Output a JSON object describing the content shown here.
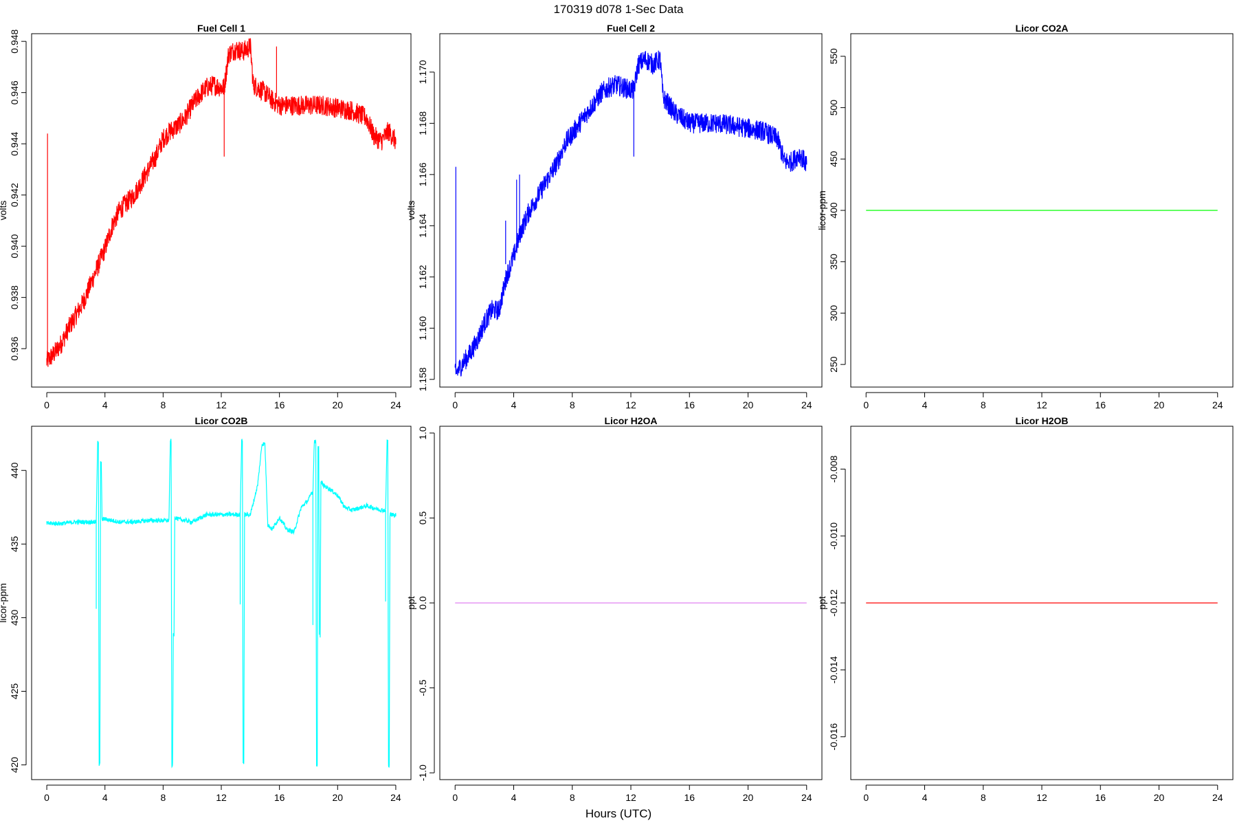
{
  "page": {
    "title": "170319   d078   1-Sec Data",
    "x_axis_label": "Hours (UTC)"
  },
  "chart_data": [
    {
      "type": "line",
      "title": "Fuel Cell 1",
      "ylabel": "volts",
      "xlim": [
        0,
        24
      ],
      "ylim": [
        0.9345,
        0.9483
      ],
      "x_ticks": [
        0,
        4,
        8,
        12,
        16,
        20,
        24
      ],
      "x_tick_labels": [
        "0",
        "4",
        "8",
        "12",
        "16",
        "20",
        "24"
      ],
      "y_ticks": [
        0.936,
        0.938,
        0.94,
        0.942,
        0.944,
        0.946,
        0.948
      ],
      "y_tick_labels": [
        "0.936",
        "0.938",
        "0.940",
        "0.942",
        "0.944",
        "0.946",
        "0.948"
      ],
      "color": "#ff0000",
      "noise": 0.0004,
      "series": [
        {
          "x": [
            0,
            0.5,
            1,
            1.5,
            2,
            2.5,
            3,
            3.5,
            4,
            4.5,
            5,
            5.5,
            6,
            6.5,
            7,
            7.5,
            8,
            8.5,
            9,
            9.5,
            10,
            10.5,
            11,
            11.5,
            12,
            12.2,
            12.5,
            13,
            13.5,
            14,
            14.2,
            14.5,
            15,
            15.5,
            16,
            17,
            18,
            19,
            20,
            21,
            22,
            22.5,
            23,
            23.5,
            24
          ],
          "y": [
            0.9355,
            0.9358,
            0.9362,
            0.9368,
            0.9373,
            0.9378,
            0.9385,
            0.9392,
            0.9399,
            0.9408,
            0.9414,
            0.9417,
            0.942,
            0.9425,
            0.943,
            0.9435,
            0.9442,
            0.9445,
            0.9447,
            0.945,
            0.9455,
            0.9459,
            0.9462,
            0.9463,
            0.9462,
            0.9462,
            0.9475,
            0.9477,
            0.9476,
            0.9478,
            0.9463,
            0.9462,
            0.946,
            0.9457,
            0.9455,
            0.9455,
            0.9455,
            0.9455,
            0.9454,
            0.9453,
            0.945,
            0.9443,
            0.9441,
            0.9445,
            0.9441
          ]
        }
      ],
      "spikes": [
        {
          "x": 0.05,
          "y0": 0.9355,
          "y1": 0.9444
        },
        {
          "x": 12.2,
          "y0": 0.9462,
          "y1": 0.9435
        },
        {
          "x": 15.8,
          "y0": 0.9458,
          "y1": 0.9478
        }
      ]
    },
    {
      "type": "line",
      "title": "Fuel Cell 2",
      "ylabel": "volts",
      "xlim": [
        0,
        24
      ],
      "ylim": [
        1.1577,
        1.1715
      ],
      "x_ticks": [
        0,
        4,
        8,
        12,
        16,
        20,
        24
      ],
      "x_tick_labels": [
        "0",
        "4",
        "8",
        "12",
        "16",
        "20",
        "24"
      ],
      "y_ticks": [
        1.158,
        1.16,
        1.162,
        1.164,
        1.166,
        1.168,
        1.17
      ],
      "y_tick_labels": [
        "1.158",
        "1.160",
        "1.162",
        "1.164",
        "1.166",
        "1.168",
        "1.170"
      ],
      "color": "#0000ff",
      "noise": 0.0004,
      "series": [
        {
          "x": [
            0,
            0.5,
            1,
            1.5,
            2,
            2.5,
            3,
            3.5,
            4,
            4.5,
            5,
            5.5,
            6,
            6.5,
            7,
            7.5,
            8,
            8.5,
            9,
            9.5,
            10,
            10.5,
            11,
            11.5,
            12,
            12.2,
            12.5,
            13,
            13.5,
            14,
            14.2,
            14.5,
            15,
            15.5,
            16,
            17,
            18,
            19,
            20,
            21,
            22,
            22.5,
            23,
            23.5,
            24
          ],
          "y": [
            1.1582,
            1.1586,
            1.159,
            1.1595,
            1.1602,
            1.1607,
            1.1607,
            1.162,
            1.1628,
            1.1638,
            1.1645,
            1.165,
            1.1655,
            1.166,
            1.1665,
            1.1672,
            1.1676,
            1.168,
            1.1684,
            1.1688,
            1.1692,
            1.1694,
            1.1695,
            1.1694,
            1.1693,
            1.1693,
            1.1703,
            1.1705,
            1.1703,
            1.1705,
            1.169,
            1.1688,
            1.1684,
            1.1682,
            1.168,
            1.168,
            1.168,
            1.1679,
            1.1678,
            1.1677,
            1.1674,
            1.1665,
            1.1665,
            1.1668,
            1.1664
          ]
        }
      ],
      "spikes": [
        {
          "x": 0.05,
          "y0": 1.1582,
          "y1": 1.1663
        },
        {
          "x": 3.45,
          "y0": 1.1625,
          "y1": 1.1642
        },
        {
          "x": 4.2,
          "y0": 1.1632,
          "y1": 1.1658
        },
        {
          "x": 4.4,
          "y0": 1.1635,
          "y1": 1.166
        },
        {
          "x": 12.2,
          "y0": 1.1693,
          "y1": 1.1667
        }
      ]
    },
    {
      "type": "line",
      "title": "Licor CO2A",
      "ylabel": "licor-ppm",
      "xlim": [
        0,
        24
      ],
      "ylim": [
        228,
        572
      ],
      "x_ticks": [
        0,
        4,
        8,
        12,
        16,
        20,
        24
      ],
      "x_tick_labels": [
        "0",
        "4",
        "8",
        "12",
        "16",
        "20",
        "24"
      ],
      "y_ticks": [
        250,
        300,
        350,
        400,
        450,
        500,
        550
      ],
      "y_tick_labels": [
        "250",
        "300",
        "350",
        "400",
        "450",
        "500",
        "550"
      ],
      "color": "#00ff00",
      "noise": 0,
      "series": [
        {
          "x": [
            0,
            24
          ],
          "y": [
            400,
            400
          ]
        }
      ],
      "spikes": []
    },
    {
      "type": "line",
      "title": "Licor CO2B",
      "ylabel": "licor-ppm",
      "xlim": [
        0,
        24
      ],
      "ylim": [
        419,
        443
      ],
      "x_ticks": [
        0,
        4,
        8,
        12,
        16,
        20,
        24
      ],
      "x_tick_labels": [
        "0",
        "4",
        "8",
        "12",
        "16",
        "20",
        "24"
      ],
      "y_ticks": [
        420,
        425,
        430,
        435,
        440
      ],
      "y_tick_labels": [
        "420",
        "425",
        "430",
        "435",
        "440"
      ],
      "color": "#00ffff",
      "noise": 0.15,
      "series": [
        {
          "x": [
            0,
            1,
            2,
            3,
            3.3,
            3.4,
            3.5,
            3.55,
            3.6,
            3.65,
            3.7,
            3.75,
            3.8,
            3.85,
            3.9,
            4.0,
            5,
            6,
            7,
            8,
            8.3,
            8.4,
            8.5,
            8.55,
            8.6,
            8.65,
            8.7,
            8.75,
            8.8,
            8.9,
            9,
            10,
            11,
            12,
            13,
            13.2,
            13.3,
            13.4,
            13.45,
            13.5,
            13.55,
            13.6,
            13.65,
            13.7,
            13.8,
            14,
            14.5,
            14.8,
            15,
            15.2,
            15.5,
            16,
            16.5,
            17,
            17.5,
            18,
            18.2,
            18.3,
            18.4,
            18.5,
            18.55,
            18.6,
            18.65,
            18.7,
            18.75,
            18.8,
            18.85,
            18.9,
            19,
            19.5,
            20,
            20.5,
            21,
            22,
            23,
            23.2,
            23.3,
            23.4,
            23.45,
            23.5,
            23.55,
            23.6,
            23.65,
            23.7,
            23.8,
            24
          ],
          "y": [
            436.4,
            436.4,
            436.5,
            436.5,
            436.5,
            436.5,
            442.0,
            442.0,
            420.0,
            420.0,
            440.5,
            440.5,
            436.7,
            436.7,
            436.7,
            436.7,
            436.5,
            436.5,
            436.6,
            436.6,
            436.6,
            436.6,
            442.0,
            442.0,
            420.0,
            420.0,
            428.8,
            428.8,
            436.8,
            436.8,
            436.7,
            436.5,
            437.0,
            437.0,
            437.0,
            437.0,
            437.0,
            442.0,
            442.0,
            420.2,
            420.2,
            437.0,
            437.0,
            437.0,
            437.0,
            437.0,
            439.0,
            441.8,
            441.8,
            436.3,
            436.0,
            436.8,
            436.0,
            435.8,
            437.5,
            438.0,
            438.5,
            438.5,
            442.0,
            442.0,
            420.0,
            420.0,
            441.5,
            441.5,
            428.8,
            428.8,
            439.2,
            439.2,
            439.0,
            438.7,
            438.3,
            437.5,
            437.3,
            437.6,
            437.3,
            437.3,
            437.3,
            442.0,
            442.0,
            420.0,
            420.0,
            437.0,
            437.0,
            437.0,
            437.0,
            437.0
          ]
        }
      ],
      "spikes": [
        {
          "x": 3.4,
          "y0": 436.5,
          "y1": 430.6
        },
        {
          "x": 13.3,
          "y0": 437.0,
          "y1": 430.9
        },
        {
          "x": 18.3,
          "y0": 438.5,
          "y1": 429.5
        },
        {
          "x": 23.3,
          "y0": 437.3,
          "y1": 431.1
        }
      ]
    },
    {
      "type": "line",
      "title": "Licor H2OA",
      "ylabel": "ppt",
      "xlim": [
        0,
        24
      ],
      "ylim": [
        -1.04,
        1.04
      ],
      "x_ticks": [
        0,
        4,
        8,
        12,
        16,
        20,
        24
      ],
      "x_tick_labels": [
        "0",
        "4",
        "8",
        "12",
        "16",
        "20",
        "24"
      ],
      "y_ticks": [
        -1.0,
        -0.5,
        0.0,
        0.5,
        1.0
      ],
      "y_tick_labels": [
        "-1.0",
        "-0.5",
        "0.0",
        "0.5",
        "1.0"
      ],
      "color": "#e080f0",
      "noise": 0,
      "series": [
        {
          "x": [
            0,
            24
          ],
          "y": [
            0,
            0
          ]
        }
      ],
      "spikes": []
    },
    {
      "type": "line",
      "title": "Licor H2OB",
      "ylabel": "ppt",
      "xlim": [
        0,
        24
      ],
      "ylim": [
        -0.01728,
        -0.00672
      ],
      "x_ticks": [
        0,
        4,
        8,
        12,
        16,
        20,
        24
      ],
      "x_tick_labels": [
        "0",
        "4",
        "8",
        "12",
        "16",
        "20",
        "24"
      ],
      "y_ticks": [
        -0.016,
        -0.014,
        -0.012,
        -0.01,
        -0.008
      ],
      "y_tick_labels": [
        "-0.016",
        "-0.014",
        "-0.012",
        "-0.010",
        "-0.008"
      ],
      "color": "#ff0000",
      "noise": 0,
      "series": [
        {
          "x": [
            0,
            24
          ],
          "y": [
            -0.012,
            -0.012
          ]
        }
      ],
      "spikes": []
    }
  ]
}
